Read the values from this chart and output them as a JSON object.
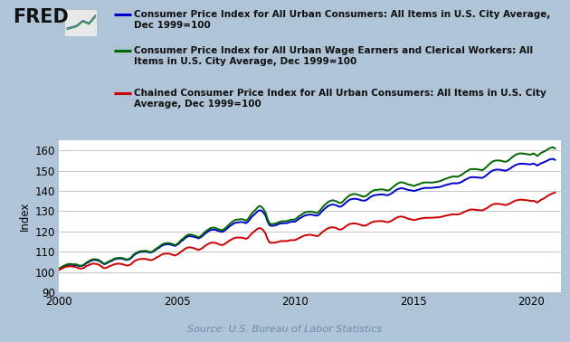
{
  "background_color": "#b0c4d8",
  "plot_bg_color": "#ffffff",
  "ylabel": "Index",
  "source_text": "Source: U.S. Bureau of Labor Statistics",
  "ylim": [
    90,
    165
  ],
  "yticks": [
    90,
    100,
    110,
    120,
    130,
    140,
    150,
    160
  ],
  "xlim_start": 2000.0,
  "xlim_end": 2021.25,
  "xticks": [
    2000,
    2005,
    2010,
    2015,
    2020
  ],
  "fred_text": "FRED",
  "legend_entries": [
    "Consumer Price Index for All Urban Consumers: All Items in U.S. City Average,\nDec 1999=100",
    "Consumer Price Index for All Urban Wage Earners and Clerical Workers: All\nItems in U.S. City Average, Dec 1999=100",
    "Chained Consumer Price Index for All Urban Consumers: All Items in U.S. City\nAverage, Dec 1999=100"
  ],
  "line_colors": [
    "#0000cc",
    "#006600",
    "#cc0000"
  ],
  "line_width": 1.4,
  "years": [
    2000.0,
    2000.083,
    2000.167,
    2000.25,
    2000.333,
    2000.417,
    2000.5,
    2000.583,
    2000.667,
    2000.75,
    2000.833,
    2000.917,
    2001.0,
    2001.083,
    2001.167,
    2001.25,
    2001.333,
    2001.417,
    2001.5,
    2001.583,
    2001.667,
    2001.75,
    2001.833,
    2001.917,
    2002.0,
    2002.083,
    2002.167,
    2002.25,
    2002.333,
    2002.417,
    2002.5,
    2002.583,
    2002.667,
    2002.75,
    2002.833,
    2002.917,
    2003.0,
    2003.083,
    2003.167,
    2003.25,
    2003.333,
    2003.417,
    2003.5,
    2003.583,
    2003.667,
    2003.75,
    2003.833,
    2003.917,
    2004.0,
    2004.083,
    2004.167,
    2004.25,
    2004.333,
    2004.417,
    2004.5,
    2004.583,
    2004.667,
    2004.75,
    2004.833,
    2004.917,
    2005.0,
    2005.083,
    2005.167,
    2005.25,
    2005.333,
    2005.417,
    2005.5,
    2005.583,
    2005.667,
    2005.75,
    2005.833,
    2005.917,
    2006.0,
    2006.083,
    2006.167,
    2006.25,
    2006.333,
    2006.417,
    2006.5,
    2006.583,
    2006.667,
    2006.75,
    2006.833,
    2006.917,
    2007.0,
    2007.083,
    2007.167,
    2007.25,
    2007.333,
    2007.417,
    2007.5,
    2007.583,
    2007.667,
    2007.75,
    2007.833,
    2007.917,
    2008.0,
    2008.083,
    2008.167,
    2008.25,
    2008.333,
    2008.417,
    2008.5,
    2008.583,
    2008.667,
    2008.75,
    2008.833,
    2008.917,
    2009.0,
    2009.083,
    2009.167,
    2009.25,
    2009.333,
    2009.417,
    2009.5,
    2009.583,
    2009.667,
    2009.75,
    2009.833,
    2009.917,
    2010.0,
    2010.083,
    2010.167,
    2010.25,
    2010.333,
    2010.417,
    2010.5,
    2010.583,
    2010.667,
    2010.75,
    2010.833,
    2010.917,
    2011.0,
    2011.083,
    2011.167,
    2011.25,
    2011.333,
    2011.417,
    2011.5,
    2011.583,
    2011.667,
    2011.75,
    2011.833,
    2011.917,
    2012.0,
    2012.083,
    2012.167,
    2012.25,
    2012.333,
    2012.417,
    2012.5,
    2012.583,
    2012.667,
    2012.75,
    2012.833,
    2012.917,
    2013.0,
    2013.083,
    2013.167,
    2013.25,
    2013.333,
    2013.417,
    2013.5,
    2013.583,
    2013.667,
    2013.75,
    2013.833,
    2013.917,
    2014.0,
    2014.083,
    2014.167,
    2014.25,
    2014.333,
    2014.417,
    2014.5,
    2014.583,
    2014.667,
    2014.75,
    2014.833,
    2014.917,
    2015.0,
    2015.083,
    2015.167,
    2015.25,
    2015.333,
    2015.417,
    2015.5,
    2015.583,
    2015.667,
    2015.75,
    2015.833,
    2015.917,
    2016.0,
    2016.083,
    2016.167,
    2016.25,
    2016.333,
    2016.417,
    2016.5,
    2016.583,
    2016.667,
    2016.75,
    2016.833,
    2016.917,
    2017.0,
    2017.083,
    2017.167,
    2017.25,
    2017.333,
    2017.417,
    2017.5,
    2017.583,
    2017.667,
    2017.75,
    2017.833,
    2017.917,
    2018.0,
    2018.083,
    2018.167,
    2018.25,
    2018.333,
    2018.417,
    2018.5,
    2018.583,
    2018.667,
    2018.75,
    2018.833,
    2018.917,
    2019.0,
    2019.083,
    2019.167,
    2019.25,
    2019.333,
    2019.417,
    2019.5,
    2019.583,
    2019.667,
    2019.75,
    2019.833,
    2019.917,
    2020.0,
    2020.083,
    2020.167,
    2020.25,
    2020.333,
    2020.417,
    2020.5,
    2020.583,
    2020.667,
    2020.75,
    2020.833,
    2020.917,
    2021.0
  ],
  "cpi_u": [
    101.1,
    102.0,
    102.5,
    103.0,
    103.4,
    103.5,
    103.7,
    103.4,
    103.5,
    103.4,
    103.1,
    102.9,
    103.1,
    103.5,
    104.4,
    104.8,
    105.4,
    105.8,
    106.0,
    105.9,
    105.7,
    105.3,
    104.6,
    103.9,
    104.2,
    104.7,
    105.2,
    105.6,
    106.2,
    106.5,
    106.7,
    106.7,
    106.7,
    106.4,
    106.1,
    106.0,
    106.4,
    107.1,
    108.2,
    108.9,
    109.4,
    109.8,
    110.0,
    110.0,
    110.1,
    110.0,
    109.7,
    109.7,
    110.1,
    110.8,
    111.5,
    112.0,
    112.8,
    113.3,
    113.6,
    113.7,
    113.7,
    113.5,
    113.2,
    112.9,
    113.4,
    114.0,
    115.1,
    115.7,
    116.6,
    117.3,
    117.7,
    117.7,
    117.5,
    117.3,
    117.0,
    116.6,
    117.1,
    117.8,
    118.7,
    119.5,
    120.1,
    120.7,
    120.9,
    120.9,
    120.7,
    120.3,
    120.0,
    119.8,
    120.3,
    121.0,
    121.9,
    122.7,
    123.4,
    124.0,
    124.4,
    124.5,
    124.6,
    124.7,
    124.5,
    124.1,
    124.7,
    125.9,
    127.2,
    128.1,
    129.0,
    130.0,
    130.5,
    130.3,
    129.3,
    127.9,
    125.2,
    123.2,
    122.8,
    122.9,
    123.0,
    123.4,
    123.8,
    124.0,
    124.1,
    124.1,
    124.2,
    124.5,
    124.8,
    124.8,
    124.9,
    125.5,
    126.3,
    126.8,
    127.4,
    127.9,
    128.1,
    128.3,
    128.4,
    128.2,
    128.0,
    127.8,
    128.2,
    129.2,
    130.3,
    131.2,
    132.0,
    132.7,
    133.1,
    133.3,
    133.2,
    132.9,
    132.4,
    132.2,
    132.7,
    133.5,
    134.4,
    135.2,
    135.8,
    136.0,
    136.2,
    136.1,
    135.9,
    135.6,
    135.3,
    135.2,
    135.4,
    136.0,
    136.8,
    137.4,
    137.8,
    138.0,
    138.1,
    138.2,
    138.3,
    138.2,
    138.0,
    137.9,
    138.2,
    138.8,
    139.5,
    140.2,
    140.8,
    141.2,
    141.4,
    141.2,
    141.0,
    140.6,
    140.4,
    140.3,
    140.0,
    140.1,
    140.5,
    140.7,
    141.1,
    141.3,
    141.5,
    141.5,
    141.5,
    141.5,
    141.6,
    141.7,
    141.8,
    141.9,
    142.1,
    142.4,
    142.8,
    143.0,
    143.3,
    143.5,
    143.8,
    143.8,
    143.7,
    143.9,
    144.2,
    144.7,
    145.3,
    145.8,
    146.3,
    146.7,
    146.8,
    146.8,
    146.7,
    146.6,
    146.5,
    146.4,
    146.9,
    147.6,
    148.4,
    149.2,
    149.9,
    150.3,
    150.5,
    150.5,
    150.5,
    150.3,
    150.1,
    150.0,
    150.4,
    150.9,
    151.6,
    152.2,
    152.8,
    153.1,
    153.4,
    153.4,
    153.4,
    153.3,
    153.2,
    153.1,
    153.2,
    153.5,
    153.1,
    152.5,
    153.1,
    153.7,
    154.0,
    154.4,
    154.9,
    155.4,
    155.7,
    155.8,
    155.3
  ],
  "cpi_w": [
    101.3,
    102.3,
    102.8,
    103.3,
    103.8,
    103.9,
    104.1,
    103.8,
    103.9,
    103.8,
    103.4,
    103.1,
    103.3,
    103.8,
    104.7,
    105.2,
    105.8,
    106.2,
    106.4,
    106.3,
    106.1,
    105.6,
    104.9,
    104.1,
    104.5,
    105.0,
    105.5,
    105.9,
    106.5,
    106.8,
    107.0,
    107.0,
    107.0,
    106.7,
    106.4,
    106.2,
    106.7,
    107.4,
    108.6,
    109.3,
    109.8,
    110.2,
    110.4,
    110.4,
    110.5,
    110.3,
    110.0,
    109.9,
    110.4,
    111.2,
    111.9,
    112.5,
    113.3,
    113.9,
    114.2,
    114.3,
    114.3,
    114.1,
    113.7,
    113.3,
    113.8,
    114.5,
    115.7,
    116.4,
    117.3,
    118.1,
    118.5,
    118.5,
    118.3,
    118.0,
    117.6,
    117.1,
    117.7,
    118.5,
    119.5,
    120.4,
    121.0,
    121.7,
    121.9,
    121.9,
    121.6,
    121.2,
    120.9,
    120.6,
    121.2,
    122.0,
    123.0,
    123.9,
    124.7,
    125.4,
    125.8,
    125.9,
    126.0,
    126.1,
    125.9,
    125.3,
    126.0,
    127.4,
    128.8,
    129.9,
    130.8,
    131.9,
    132.6,
    132.2,
    131.0,
    129.4,
    126.4,
    124.1,
    123.6,
    123.8,
    123.9,
    124.3,
    124.7,
    125.0,
    125.1,
    125.1,
    125.2,
    125.5,
    125.9,
    125.8,
    126.0,
    126.7,
    127.6,
    128.1,
    128.8,
    129.4,
    129.6,
    129.8,
    129.9,
    129.7,
    129.4,
    129.1,
    129.6,
    130.8,
    132.0,
    133.0,
    133.9,
    134.7,
    135.1,
    135.4,
    135.2,
    134.9,
    134.3,
    134.0,
    134.5,
    135.5,
    136.5,
    137.3,
    138.0,
    138.3,
    138.5,
    138.4,
    138.1,
    137.8,
    137.4,
    137.2,
    137.5,
    138.2,
    139.1,
    139.8,
    140.3,
    140.5,
    140.6,
    140.7,
    140.8,
    140.7,
    140.4,
    140.2,
    140.5,
    141.3,
    142.1,
    142.9,
    143.6,
    144.1,
    144.3,
    144.1,
    143.8,
    143.3,
    143.1,
    142.9,
    142.5,
    142.6,
    143.1,
    143.3,
    143.8,
    144.0,
    144.2,
    144.2,
    144.2,
    144.1,
    144.2,
    144.3,
    144.5,
    144.7,
    145.0,
    145.4,
    145.9,
    146.1,
    146.5,
    146.8,
    147.1,
    147.1,
    147.0,
    147.2,
    147.6,
    148.2,
    149.0,
    149.6,
    150.2,
    150.7,
    150.8,
    150.8,
    150.7,
    150.6,
    150.4,
    150.2,
    150.8,
    151.6,
    152.6,
    153.5,
    154.3,
    154.8,
    155.0,
    155.0,
    155.0,
    154.8,
    154.5,
    154.4,
    154.8,
    155.5,
    156.4,
    157.1,
    157.8,
    158.2,
    158.5,
    158.5,
    158.4,
    158.3,
    158.1,
    157.9,
    158.0,
    158.5,
    158.0,
    157.2,
    158.0,
    158.8,
    159.2,
    159.7,
    160.3,
    160.9,
    161.3,
    161.5,
    160.9
  ],
  "chained_cpi": [
    101.0,
    101.5,
    101.9,
    102.4,
    102.7,
    102.8,
    102.9,
    102.7,
    102.6,
    102.4,
    102.0,
    101.7,
    101.8,
    102.2,
    103.0,
    103.3,
    103.8,
    104.1,
    104.2,
    104.0,
    103.8,
    103.3,
    102.6,
    101.9,
    102.1,
    102.5,
    103.0,
    103.3,
    103.8,
    104.0,
    104.2,
    104.1,
    104.0,
    103.7,
    103.4,
    103.2,
    103.5,
    104.1,
    105.1,
    105.7,
    106.1,
    106.4,
    106.5,
    106.5,
    106.5,
    106.3,
    106.0,
    105.9,
    106.2,
    106.8,
    107.4,
    107.8,
    108.5,
    108.9,
    109.1,
    109.1,
    109.1,
    108.8,
    108.5,
    108.2,
    108.6,
    109.1,
    110.1,
    110.6,
    111.4,
    111.9,
    112.2,
    112.2,
    111.9,
    111.7,
    111.3,
    110.9,
    111.3,
    111.9,
    112.7,
    113.4,
    113.9,
    114.4,
    114.5,
    114.5,
    114.3,
    113.9,
    113.5,
    113.3,
    113.7,
    114.3,
    115.0,
    115.7,
    116.2,
    116.7,
    117.0,
    117.0,
    117.0,
    117.0,
    116.7,
    116.4,
    116.8,
    117.9,
    119.0,
    119.8,
    120.6,
    121.4,
    121.7,
    121.4,
    120.5,
    119.1,
    116.4,
    114.7,
    114.4,
    114.5,
    114.5,
    114.8,
    115.1,
    115.3,
    115.3,
    115.3,
    115.3,
    115.6,
    115.8,
    115.7,
    115.8,
    116.2,
    116.8,
    117.2,
    117.7,
    118.1,
    118.2,
    118.4,
    118.4,
    118.2,
    118.0,
    117.7,
    118.0,
    118.9,
    119.8,
    120.5,
    121.2,
    121.7,
    122.0,
    122.1,
    122.0,
    121.7,
    121.1,
    120.9,
    121.3,
    121.9,
    122.7,
    123.3,
    123.8,
    123.9,
    124.0,
    123.9,
    123.7,
    123.4,
    123.0,
    122.9,
    123.0,
    123.5,
    124.1,
    124.6,
    124.9,
    125.0,
    125.1,
    125.1,
    125.2,
    125.0,
    124.8,
    124.6,
    124.8,
    125.3,
    125.9,
    126.5,
    127.0,
    127.3,
    127.4,
    127.2,
    126.9,
    126.5,
    126.2,
    126.0,
    125.7,
    125.7,
    126.0,
    126.2,
    126.5,
    126.6,
    126.8,
    126.7,
    126.8,
    126.8,
    126.8,
    126.9,
    127.0,
    127.0,
    127.2,
    127.4,
    127.7,
    127.9,
    128.1,
    128.3,
    128.5,
    128.5,
    128.4,
    128.5,
    128.8,
    129.2,
    129.7,
    130.1,
    130.5,
    130.8,
    130.9,
    130.8,
    130.7,
    130.6,
    130.5,
    130.4,
    130.8,
    131.3,
    131.9,
    132.6,
    133.2,
    133.5,
    133.7,
    133.6,
    133.6,
    133.4,
    133.2,
    133.0,
    133.4,
    133.7,
    134.3,
    134.8,
    135.3,
    135.5,
    135.7,
    135.7,
    135.6,
    135.5,
    135.4,
    135.2,
    135.0,
    135.2,
    134.8,
    134.3,
    135.0,
    135.7,
    136.1,
    136.7,
    137.4,
    138.0,
    138.5,
    138.9,
    139.2
  ]
}
